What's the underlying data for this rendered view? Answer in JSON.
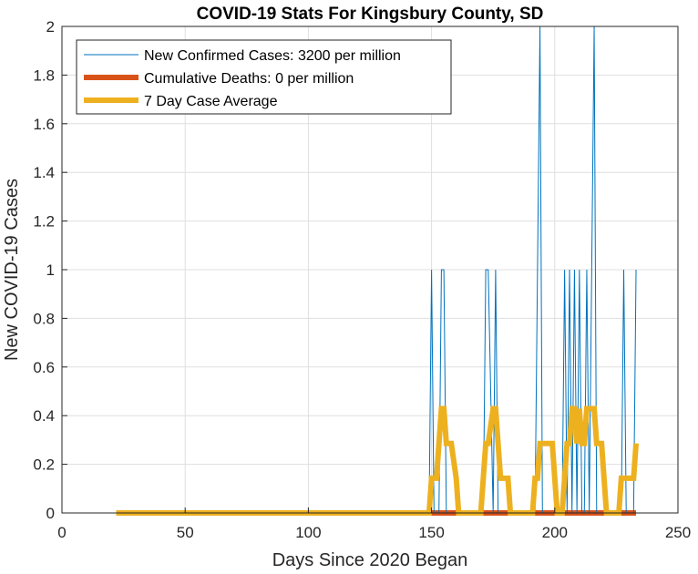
{
  "chart_data": {
    "type": "line",
    "title": "COVID-19 Stats For Kingsbury County, SD",
    "xlabel": "Days Since 2020 Began",
    "ylabel": "New COVID-19 Cases",
    "xlim": [
      0,
      250
    ],
    "ylim": [
      0,
      2
    ],
    "xticks": [
      "0",
      "50",
      "100",
      "150",
      "200",
      "250"
    ],
    "yticks": [
      "0",
      "0.2",
      "0.4",
      "0.6",
      "0.8",
      "1",
      "1.2",
      "1.4",
      "1.6",
      "1.8",
      "2"
    ],
    "grid": true,
    "legend_position": "top-left",
    "series": [
      {
        "name": "New Confirmed Cases: 3200 per million",
        "color": "#0072BD",
        "x": [
          22,
          149,
          150,
          151,
          153,
          154,
          155,
          156,
          171,
          172,
          173,
          175,
          176,
          177,
          192,
          193,
          194,
          195,
          203,
          204,
          205,
          206,
          207,
          208,
          209,
          210,
          211,
          212,
          213,
          214,
          215,
          216,
          217,
          218,
          227,
          228,
          229,
          230,
          232,
          233
        ],
        "y": [
          0,
          0,
          1,
          0,
          0,
          1,
          1,
          0,
          0,
          1,
          1,
          0,
          1,
          0,
          0,
          1,
          2,
          0,
          0,
          1,
          0,
          1,
          0,
          1,
          0,
          1,
          0,
          0,
          1,
          0,
          1,
          2,
          0,
          0,
          0,
          1,
          0,
          0,
          0,
          1
        ]
      },
      {
        "name": "Cumulative Deaths: 0 per million",
        "color": "#D95319",
        "x": [
          22,
          233
        ],
        "y": [
          0,
          0
        ]
      },
      {
        "name": "7 Day Case Average",
        "color": "#EDB120",
        "x": [
          22,
          149,
          150,
          152,
          153,
          154,
          155,
          156,
          157,
          158,
          160,
          161,
          170,
          171,
          172,
          173,
          175,
          176,
          177,
          178,
          179,
          181,
          182,
          191,
          192,
          193,
          194,
          195,
          199,
          200,
          201,
          202,
          203,
          204,
          205,
          206,
          207,
          208,
          209,
          210,
          211,
          212,
          213,
          214,
          215,
          216,
          217,
          218,
          219,
          220,
          221,
          222,
          226,
          227,
          228,
          229,
          230,
          231,
          232,
          233
        ],
        "y": [
          0,
          0,
          0.1429,
          0.1429,
          0.2857,
          0.4286,
          0.4286,
          0.2857,
          0.2857,
          0.2857,
          0.1429,
          0,
          0,
          0.1429,
          0.2857,
          0.2857,
          0.4286,
          0.4286,
          0.2857,
          0.1429,
          0.1429,
          0.1429,
          0,
          0,
          0.1429,
          0.1429,
          0.2857,
          0.2857,
          0.2857,
          0.1429,
          0,
          0,
          0,
          0.1429,
          0.2857,
          0.2857,
          0.4286,
          0.4286,
          0.2857,
          0.4286,
          0.2857,
          0.2857,
          0.4286,
          0.4286,
          0.4286,
          0.4286,
          0.2857,
          0.2857,
          0.2857,
          0.1429,
          0,
          0,
          0,
          0.1429,
          0.1429,
          0.1429,
          0.1429,
          0.1429,
          0.1429,
          0.2857
        ]
      }
    ]
  }
}
